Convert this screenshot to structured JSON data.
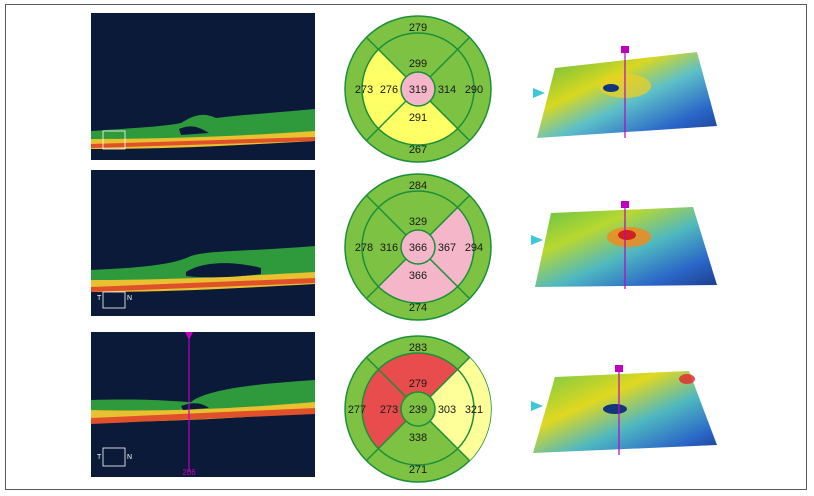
{
  "rows": [
    {
      "map": {
        "outer": {
          "superior": "279",
          "temporal": "273",
          "nasal": "290",
          "inferior": "267"
        },
        "inner": {
          "superior": "299",
          "temporal": "276",
          "nasal": "314",
          "inferior": "291"
        },
        "center": "319"
      },
      "scan": {
        "orientation_left": "",
        "orientation_right": "",
        "position": ""
      }
    },
    {
      "map": {
        "outer": {
          "superior": "284",
          "temporal": "278",
          "nasal": "294",
          "inferior": "274"
        },
        "inner": {
          "superior": "329",
          "temporal": "316",
          "nasal": "367",
          "inferior": "366"
        },
        "center": "366"
      },
      "scan": {
        "orientation_left": "T",
        "orientation_right": "N",
        "position": ""
      }
    },
    {
      "map": {
        "outer": {
          "superior": "283",
          "temporal": "277",
          "nasal": "321",
          "inferior": "271"
        },
        "inner": {
          "superior": "279",
          "temporal": "273",
          "nasal": "303",
          "inferior": "338"
        },
        "center": "239"
      },
      "scan": {
        "orientation_left": "T",
        "orientation_right": "N",
        "position": "206"
      }
    }
  ],
  "colors": {
    "normal": "#7dc242",
    "borderline": "#ffff66",
    "elevated": "#f4b6c8",
    "thin": "#e84c4c",
    "pale_yellow": "#ffff99",
    "grid": "#1b8f3a",
    "scan_line": "#c000c0"
  }
}
